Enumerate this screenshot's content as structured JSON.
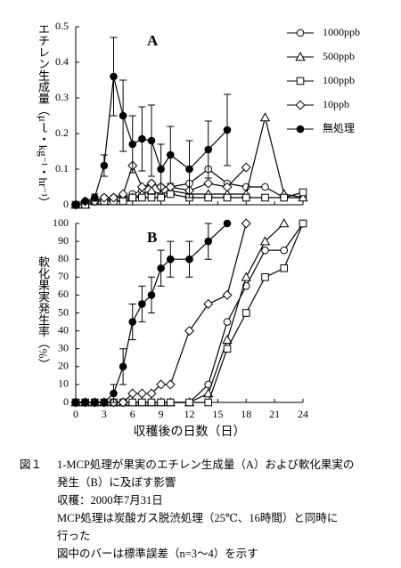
{
  "chart_data": [
    {
      "type": "line",
      "panel": "A",
      "y_label": "エチレン生成量（μｌ・kg⁻¹・hr⁻¹）",
      "xlim": [
        0,
        24
      ],
      "xticks": [
        0,
        3,
        6,
        9,
        12,
        15,
        18,
        21,
        24
      ],
      "ylim": [
        0,
        0.5
      ],
      "yticks": [
        0,
        0.1,
        0.2,
        0.3,
        0.4,
        0.5
      ],
      "x": [
        0,
        1,
        2,
        3,
        4,
        5,
        6,
        7,
        8,
        9,
        10,
        12,
        14,
        16,
        18,
        20,
        22,
        24
      ],
      "series": [
        {
          "name": "1000ppb",
          "marker": "circle",
          "color": "#000",
          "values": [
            0,
            0.01,
            0.01,
            0.02,
            0.02,
            0.02,
            0.03,
            0.04,
            0.06,
            0.05,
            0.05,
            0.06,
            0.1,
            0.06,
            0.05,
            0.05,
            0.02,
            0.02
          ]
        },
        {
          "name": "500ppb",
          "marker": "triangle",
          "color": "#000",
          "values": [
            0,
            0,
            0.01,
            0.01,
            0.02,
            0.02,
            0.02,
            0.03,
            0.04,
            0.03,
            0.04,
            0.03,
            0.03,
            0.03,
            0.03,
            0.245,
            0.03,
            0.02
          ]
        },
        {
          "name": "100ppb",
          "marker": "square",
          "color": "#000",
          "values": [
            0,
            0,
            0.01,
            0.01,
            0.01,
            0.01,
            0.02,
            0.02,
            0.02,
            0.02,
            0.03,
            0.02,
            0.02,
            0.02,
            0.02,
            0.02,
            0.02,
            0.035
          ]
        },
        {
          "name": "10ppb",
          "marker": "diamond",
          "color": "#000",
          "values": [
            0,
            0.01,
            0.01,
            0.02,
            0.02,
            0.03,
            0.11,
            0.05,
            0.06,
            0.05,
            0.05,
            0.04,
            0.06,
            0.05,
            0.105,
            null,
            null,
            null
          ]
        },
        {
          "name": "無処理",
          "marker": "filled",
          "color": "#000",
          "values": [
            0,
            0.01,
            0.02,
            0.11,
            0.36,
            0.25,
            0.17,
            0.185,
            0.18,
            0.1,
            0.14,
            0.1,
            0.155,
            0.21,
            null,
            null,
            null,
            null
          ],
          "errors": [
            0,
            0,
            0.01,
            0.03,
            0.11,
            0.1,
            0.08,
            0.09,
            0.1,
            0.07,
            0.08,
            0.08,
            0.08,
            0.1,
            null,
            null,
            null,
            null
          ]
        }
      ]
    },
    {
      "type": "line",
      "panel": "B",
      "y_label": "軟化果実発生率（%）",
      "x_label": "収穫後の日数（日）",
      "xlim": [
        0,
        24
      ],
      "xticks": [
        0,
        3,
        6,
        9,
        12,
        15,
        18,
        21,
        24
      ],
      "ylim": [
        0,
        100
      ],
      "yticks": [
        0,
        10,
        20,
        30,
        40,
        50,
        60,
        70,
        80,
        90,
        100
      ],
      "x": [
        0,
        1,
        2,
        3,
        4,
        5,
        6,
        7,
        8,
        9,
        10,
        12,
        14,
        16,
        18,
        20,
        22,
        24
      ],
      "series": [
        {
          "marker": "circle",
          "color": "#000",
          "values": [
            0,
            0,
            0,
            0,
            0,
            0,
            0,
            0,
            0,
            0,
            0,
            0,
            10,
            45,
            65,
            85,
            85,
            100
          ]
        },
        {
          "marker": "triangle",
          "color": "#000",
          "values": [
            0,
            0,
            0,
            0,
            0,
            0,
            0,
            0,
            0,
            0,
            0,
            0,
            5,
            35,
            70,
            90,
            100,
            null
          ]
        },
        {
          "marker": "square",
          "color": "#000",
          "values": [
            0,
            0,
            0,
            0,
            0,
            0,
            0,
            0,
            0,
            0,
            0,
            0,
            0,
            30,
            50,
            70,
            75,
            100
          ]
        },
        {
          "marker": "diamond",
          "color": "#000",
          "values": [
            0,
            0,
            0,
            0,
            0,
            0,
            5,
            5,
            5,
            10,
            10,
            40,
            55,
            60,
            100,
            null,
            null,
            null
          ]
        },
        {
          "marker": "filled",
          "color": "#000",
          "values": [
            0,
            0,
            0,
            0,
            5,
            20,
            45,
            55,
            60,
            75,
            80,
            80,
            90,
            100,
            null,
            null,
            null,
            null
          ],
          "errors": [
            0,
            0,
            0,
            0,
            5,
            10,
            10,
            10,
            10,
            10,
            10,
            10,
            10,
            0,
            null,
            null,
            null,
            null
          ]
        }
      ]
    }
  ],
  "caption": {
    "label": "図１",
    "lines": [
      "1-MCP処理が果実のエチレン生成量（A）および軟化果実の",
      "発生（B）に及ぼす影響",
      "収穫：2000年7月31日",
      "MCP処理は炭酸ガス脱渋処理（25℃、16時間）と同時に",
      "行った",
      "図中のバーは標準誤差（n=3～4）を示す"
    ]
  }
}
